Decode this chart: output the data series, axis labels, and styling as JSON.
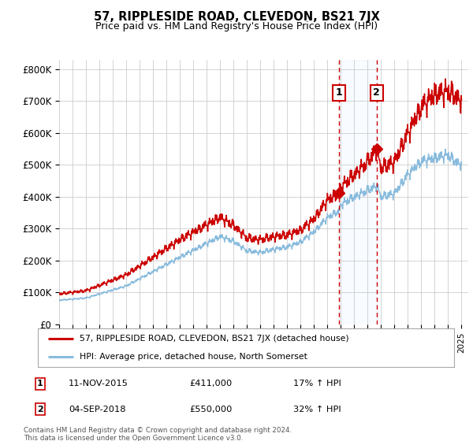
{
  "title": "57, RIPPLESIDE ROAD, CLEVEDON, BS21 7JX",
  "subtitle": "Price paid vs. HM Land Registry's House Price Index (HPI)",
  "ylabel_ticks": [
    "£0",
    "£100K",
    "£200K",
    "£300K",
    "£400K",
    "£500K",
    "£600K",
    "£700K",
    "£800K"
  ],
  "ytick_values": [
    0,
    100000,
    200000,
    300000,
    400000,
    500000,
    600000,
    700000,
    800000
  ],
  "ylim": [
    0,
    830000
  ],
  "xlim_start": 1995.0,
  "xlim_end": 2025.5,
  "sale1_x": 2015.87,
  "sale1_y": 411000,
  "sale2_x": 2018.67,
  "sale2_y": 550000,
  "sale1_date": "11-NOV-2015",
  "sale1_price": "£411,000",
  "sale1_hpi": "17% ↑ HPI",
  "sale2_date": "04-SEP-2018",
  "sale2_price": "£550,000",
  "sale2_hpi": "32% ↑ HPI",
  "background_color": "#ffffff",
  "grid_color": "#cccccc",
  "line_color_red": "#cc0000",
  "line_color_blue": "#88bbdd",
  "dashed_color": "#cc0000",
  "shade_color": "#ddeeff",
  "legend_label_red": "57, RIPPLESIDE ROAD, CLEVEDON, BS21 7JX (detached house)",
  "legend_label_blue": "HPI: Average price, detached house, North Somerset",
  "footer": "Contains HM Land Registry data © Crown copyright and database right 2024.\nThis data is licensed under the Open Government Licence v3.0."
}
